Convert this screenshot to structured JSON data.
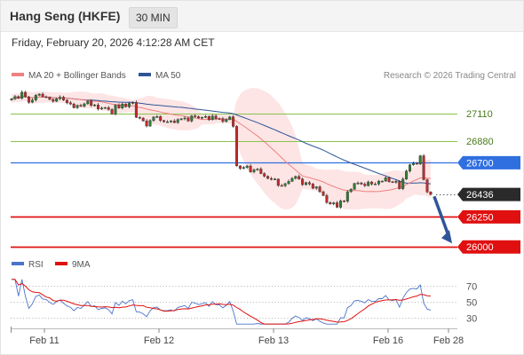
{
  "header": {
    "title": "Hang Seng (HKFE)",
    "timeframe": "30 MIN"
  },
  "datetime": "Friday, February 20, 2026 4:12:28 AM CET",
  "legend": {
    "ma20": "MA 20 + Bollinger Bands",
    "ma50": "MA 50",
    "credit": "Research © 2026 Trading Central"
  },
  "colors": {
    "ma20": "#f08080",
    "ma50": "#2f5597",
    "band_fill": "#fde0e0",
    "candle_up": "#2e7d32",
    "candle_down": "#c62828",
    "resistance": "#8bc34a",
    "pivot": "#2f6fe0",
    "support": "#e01010",
    "last_price": "#2a2a2a",
    "rsi": "#4a74c9",
    "rsi_ma": "#e01010",
    "arrow": "#2f5597"
  },
  "chart_data": [
    {
      "type": "candlestick",
      "x_labels": [
        "Feb 11",
        "Feb 12",
        "Feb 13",
        "Feb 16",
        "Feb 28"
      ],
      "ylim": [
        25950,
        27330
      ],
      "grid": false,
      "legend_position": "top-left",
      "series": [
        {
          "name": "MA 20 + Bollinger Bands"
        },
        {
          "name": "MA 50"
        }
      ],
      "levels": [
        {
          "value": 27110,
          "label": "27110",
          "kind": "resistance"
        },
        {
          "value": 26880,
          "label": "26880",
          "kind": "resistance"
        },
        {
          "value": 26700,
          "label": "26700",
          "kind": "pivot"
        },
        {
          "value": 26436,
          "label": "26436",
          "kind": "last"
        },
        {
          "value": 26250,
          "label": "26250",
          "kind": "support"
        },
        {
          "value": 26000,
          "label": "26000",
          "kind": "support"
        }
      ],
      "closes": [
        27231,
        27251,
        27236,
        27286,
        27248,
        27203,
        27221,
        27261,
        27271,
        27249,
        27246,
        27226,
        27211,
        27232,
        27245,
        27221,
        27199,
        27188,
        27157,
        27177,
        27169,
        27190,
        27214,
        27176,
        27181,
        27147,
        27155,
        27158,
        27143,
        27105,
        27180,
        27155,
        27189,
        27166,
        27194,
        27201,
        27077,
        27071,
        27048,
        27005,
        27051,
        27080,
        27084,
        27051,
        27041,
        27041,
        27047,
        27034,
        27059,
        27065,
        27072,
        27047,
        27090,
        27083,
        27072,
        27078,
        27085,
        27058,
        27089,
        27067,
        27066,
        27043,
        27059,
        27082,
        27002,
        26674,
        26652,
        26661,
        26673,
        26624,
        26641,
        26648,
        26610,
        26588,
        26569,
        26563,
        26564,
        26511,
        26509,
        26526,
        26545,
        26570,
        26586,
        26565,
        26518,
        26535,
        26523,
        26488,
        26500,
        26459,
        26427,
        26369,
        26357,
        26367,
        26330,
        26383,
        26379,
        26459,
        26479,
        26528,
        26532,
        26522,
        26509,
        26540,
        26523,
        26523,
        26547,
        26547,
        26575,
        26543,
        26537,
        26546,
        26484,
        26564,
        26631,
        26683,
        26695,
        26690,
        26758,
        26559,
        26457,
        26436
      ],
      "arrow": {
        "from": 26420,
        "to": 26000
      }
    },
    {
      "type": "line",
      "series": [
        {
          "name": "RSI"
        },
        {
          "name": "9MA"
        }
      ],
      "yticks": [
        70,
        50,
        30
      ],
      "ylim": [
        20,
        80
      ],
      "grid": true,
      "legend_position": "top-left"
    }
  ]
}
